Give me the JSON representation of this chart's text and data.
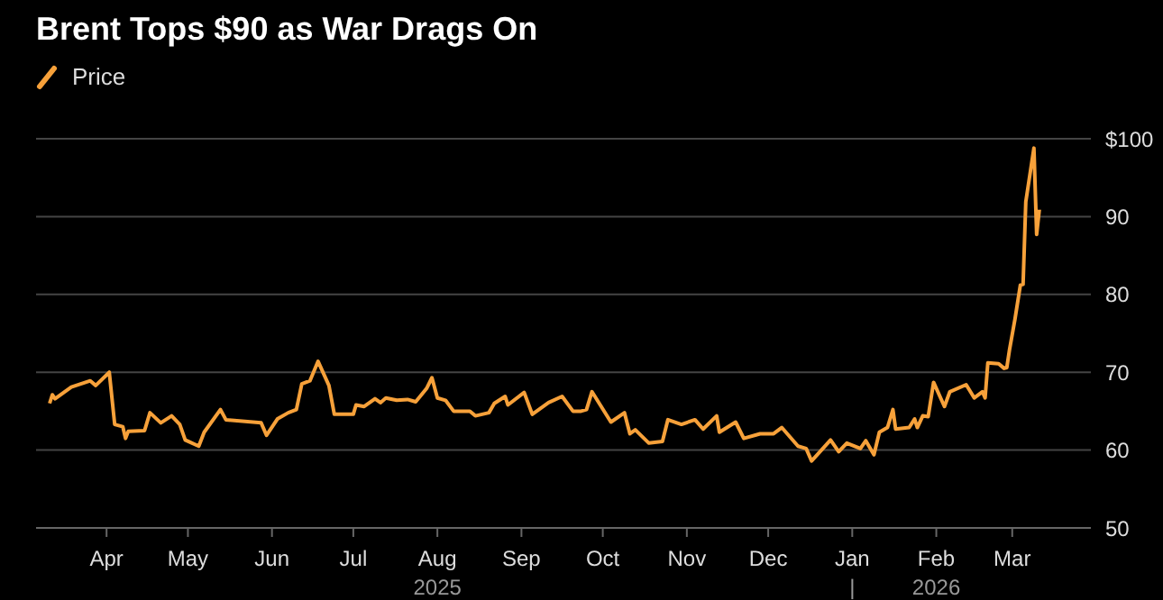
{
  "chart_data": {
    "type": "line",
    "title": "Brent Tops $90 as War Drags On",
    "x": [
      "2025-03-11",
      "2025-03-12",
      "2025-03-13",
      "2025-03-19",
      "2025-03-26",
      "2025-03-28",
      "2025-04-02",
      "2025-04-04",
      "2025-04-07",
      "2025-04-08",
      "2025-04-09",
      "2025-04-15",
      "2025-04-17",
      "2025-04-21",
      "2025-04-25",
      "2025-04-28",
      "2025-04-30",
      "2025-05-05",
      "2025-05-07",
      "2025-05-13",
      "2025-05-15",
      "2025-05-28",
      "2025-05-30",
      "2025-06-03",
      "2025-06-07",
      "2025-06-10",
      "2025-06-12",
      "2025-06-15",
      "2025-06-18",
      "2025-06-22",
      "2025-06-24",
      "2025-07-01",
      "2025-07-02",
      "2025-07-05",
      "2025-07-09",
      "2025-07-11",
      "2025-07-13",
      "2025-07-17",
      "2025-07-21",
      "2025-07-24",
      "2025-07-28",
      "2025-07-30",
      "2025-08-01",
      "2025-08-04",
      "2025-08-07",
      "2025-08-13",
      "2025-08-15",
      "2025-08-20",
      "2025-08-22",
      "2025-08-26",
      "2025-08-27",
      "2025-09-02",
      "2025-09-05",
      "2025-09-11",
      "2025-09-16",
      "2025-09-20",
      "2025-09-23",
      "2025-09-25",
      "2025-09-27",
      "2025-10-04",
      "2025-10-09",
      "2025-10-11",
      "2025-10-13",
      "2025-10-18",
      "2025-10-23",
      "2025-10-25",
      "2025-10-30",
      "2025-11-04",
      "2025-11-07",
      "2025-11-12",
      "2025-11-13",
      "2025-11-19",
      "2025-11-22",
      "2025-11-28",
      "2025-12-03",
      "2025-12-06",
      "2025-12-12",
      "2025-12-15",
      "2025-12-17",
      "2025-12-24",
      "2025-12-27",
      "2025-12-30",
      "2026-01-04",
      "2026-01-06",
      "2026-01-09",
      "2026-01-11",
      "2026-01-14",
      "2026-01-16",
      "2026-01-17",
      "2026-01-22",
      "2026-01-24",
      "2026-01-25",
      "2026-01-27",
      "2026-01-29",
      "2026-01-31",
      "2026-02-04",
      "2026-02-06",
      "2026-02-12",
      "2026-02-15",
      "2026-02-18",
      "2026-02-19",
      "2026-02-20",
      "2026-02-24",
      "2026-02-26",
      "2026-02-27",
      "2026-02-28",
      "2026-03-02",
      "2026-03-04",
      "2026-03-05",
      "2026-03-06",
      "2026-03-09",
      "2026-03-10",
      "2026-03-11"
    ],
    "series": [
      {
        "name": "Price",
        "color": "#f7a13a",
        "values": [
          66.0,
          67.1,
          66.6,
          68.1,
          68.9,
          68.3,
          70.0,
          63.3,
          63.0,
          61.5,
          62.4,
          62.5,
          64.8,
          63.5,
          64.4,
          63.3,
          61.3,
          60.5,
          62.3,
          65.2,
          63.9,
          63.5,
          61.9,
          64.0,
          64.8,
          65.2,
          68.5,
          68.9,
          71.4,
          68.3,
          64.6,
          64.6,
          65.8,
          65.6,
          66.6,
          66.1,
          66.7,
          66.4,
          66.5,
          66.2,
          67.9,
          69.3,
          66.7,
          66.4,
          65.0,
          65.0,
          64.4,
          64.8,
          66.0,
          66.9,
          65.8,
          67.4,
          64.6,
          66.1,
          66.9,
          65.0,
          65.0,
          65.2,
          67.5,
          63.6,
          64.8,
          62.1,
          62.6,
          60.9,
          61.1,
          63.9,
          63.3,
          63.9,
          62.7,
          64.4,
          62.3,
          63.6,
          61.5,
          62.1,
          62.1,
          62.9,
          60.5,
          60.2,
          58.6,
          61.3,
          59.8,
          60.9,
          60.2,
          61.2,
          59.4,
          62.3,
          62.9,
          65.2,
          62.7,
          62.9,
          64.0,
          62.9,
          64.4,
          64.3,
          68.7,
          65.6,
          67.5,
          68.4,
          66.7,
          67.5,
          66.7,
          71.2,
          71.1,
          70.5,
          70.6,
          72.9,
          76.8,
          81.2,
          81.3,
          91.9,
          98.8,
          87.7,
          90.9
        ]
      }
    ],
    "xlim": [
      "2025-03-06",
      "2026-03-30"
    ],
    "xticks": [
      {
        "value": "2025-04-01",
        "label": "Apr"
      },
      {
        "value": "2025-05-01",
        "label": "May"
      },
      {
        "value": "2025-06-01",
        "label": "Jun"
      },
      {
        "value": "2025-07-01",
        "label": "Jul"
      },
      {
        "value": "2025-08-01",
        "label": "Aug\n2025"
      },
      {
        "value": "2025-09-01",
        "label": "Sep"
      },
      {
        "value": "2025-10-01",
        "label": "Oct"
      },
      {
        "value": "2025-11-01",
        "label": "Nov"
      },
      {
        "value": "2025-12-01",
        "label": "Dec"
      },
      {
        "value": "2026-01-01",
        "label": "Jan\n|"
      },
      {
        "value": "2026-02-01",
        "label": "Feb\n2026"
      },
      {
        "value": "2026-03-01",
        "label": "Mar"
      }
    ],
    "ylim": [
      50,
      100
    ],
    "yticks": [
      50,
      60,
      70,
      80,
      90,
      {
        "value": 100,
        "label": "$100"
      }
    ],
    "grid": "y",
    "legend": "top left",
    "marker": "none",
    "line_style": "solid"
  }
}
